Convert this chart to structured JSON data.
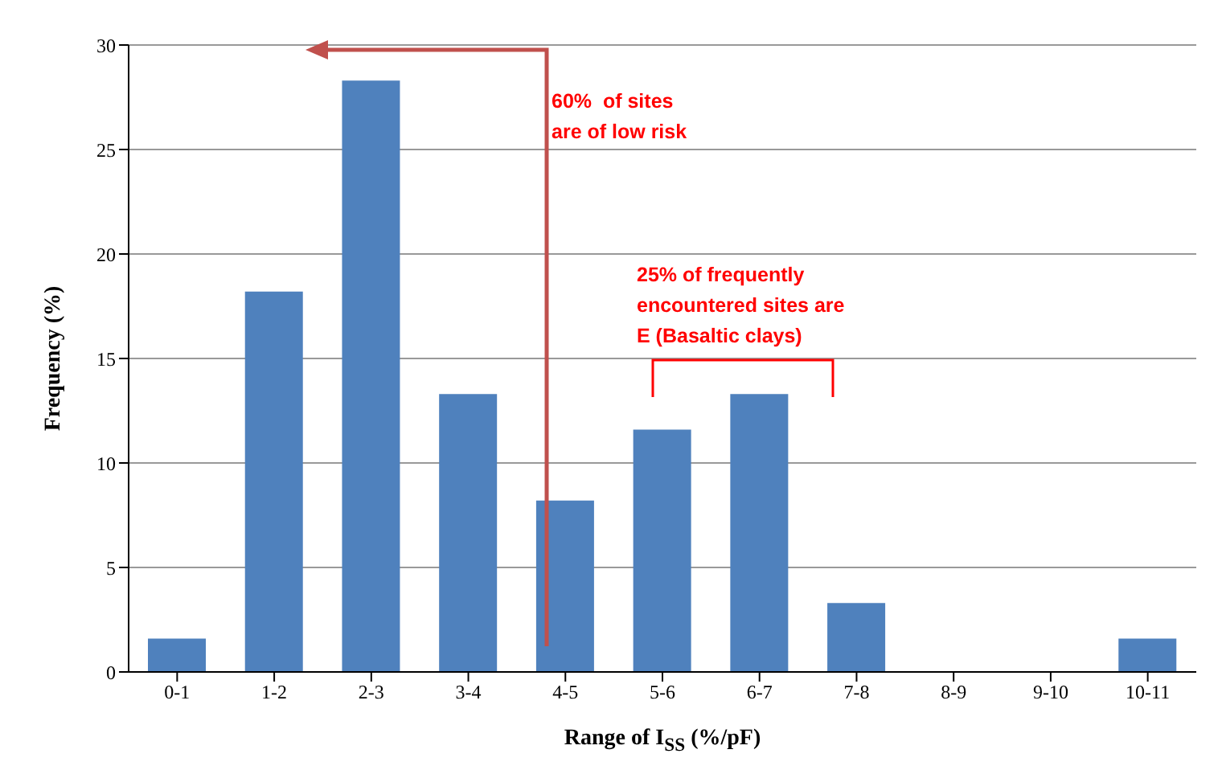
{
  "chart_data": {
    "type": "bar",
    "xlabel": "Range of I$_{SS}$ (%/pF)",
    "ylabel": "Frequency (%)",
    "categories": [
      "0-1",
      "1-2",
      "2-3",
      "3-4",
      "4-5",
      "5-6",
      "6-7",
      "7-8",
      "8-9",
      "9-10",
      "10-11"
    ],
    "values": [
      1.6,
      18.2,
      28.3,
      13.3,
      8.2,
      11.6,
      13.3,
      3.3,
      0,
      0,
      1.6
    ],
    "color": "#4f81bd",
    "ylim": [
      0,
      30
    ],
    "yticks": [
      0,
      5,
      10,
      15,
      20,
      25,
      30
    ],
    "grid": "y",
    "annotations": [
      "60%  of sites\nare of low risk",
      "25% of frequently\nencountered sites are\nE (Basaltic clays)"
    ]
  }
}
